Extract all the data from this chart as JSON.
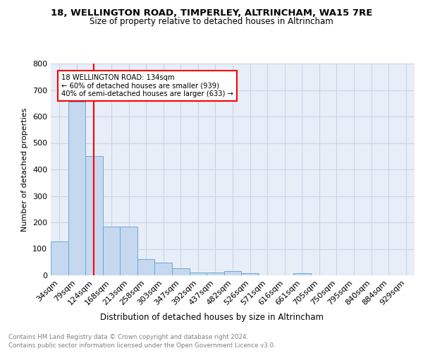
{
  "title1": "18, WELLINGTON ROAD, TIMPERLEY, ALTRINCHAM, WA15 7RE",
  "title2": "Size of property relative to detached houses in Altrincham",
  "xlabel": "Distribution of detached houses by size in Altrincham",
  "ylabel": "Number of detached properties",
  "bar_labels": [
    "34sqm",
    "79sqm",
    "124sqm",
    "168sqm",
    "213sqm",
    "258sqm",
    "303sqm",
    "347sqm",
    "392sqm",
    "437sqm",
    "482sqm",
    "526sqm",
    "571sqm",
    "616sqm",
    "661sqm",
    "705sqm",
    "750sqm",
    "795sqm",
    "840sqm",
    "884sqm",
    "929sqm"
  ],
  "bar_values": [
    128,
    655,
    452,
    185,
    185,
    62,
    47,
    28,
    12,
    12,
    15,
    9,
    0,
    0,
    9,
    0,
    0,
    0,
    0,
    0,
    0
  ],
  "bar_color": "#c5d8f0",
  "bar_edge_color": "#6aaad4",
  "red_line_x": 2.0,
  "annotation_text": "18 WELLINGTON ROAD: 134sqm\n← 60% of detached houses are smaller (939)\n40% of semi-detached houses are larger (633) →",
  "annotation_box_color": "white",
  "annotation_box_edge": "red",
  "footer_text1": "Contains HM Land Registry data © Crown copyright and database right 2024.",
  "footer_text2": "Contains public sector information licensed under the Open Government Licence v3.0.",
  "bg_color": "white",
  "plot_bg_color": "#e8eef8",
  "grid_color": "#c8d4e8",
  "ylim": [
    0,
    800
  ]
}
